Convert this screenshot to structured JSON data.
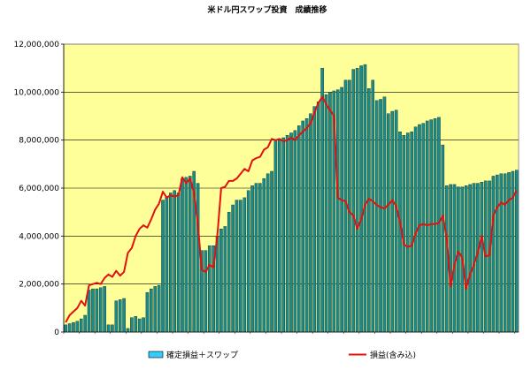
{
  "chart_data": {
    "type": "bar",
    "title": "米ドル円スワップ投資　成績推移",
    "xlabel": "",
    "ylabel": "",
    "ylim": [
      0,
      12000000
    ],
    "y_ticks": [
      "0",
      "2,000,000",
      "4,000,000",
      "6,000,000",
      "8,000,000",
      "10,000,000",
      "12,000,000"
    ],
    "grid": true,
    "legend_position": "bottom",
    "colors": {
      "plot_bg": "#ffff99",
      "bar_fill": "#1a8a8a",
      "bar_stroke": "#0a3030",
      "line": "#e41010",
      "grid": "#000000",
      "legend_bar": "#33ccff"
    },
    "series": [
      {
        "name": "確定損益＋スワップ",
        "type": "bar",
        "values": [
          300000,
          350000,
          400000,
          450000,
          550000,
          700000,
          1750000,
          1800000,
          1800000,
          1850000,
          1900000,
          300000,
          300000,
          1300000,
          1350000,
          1400000,
          150000,
          600000,
          650000,
          550000,
          600000,
          1650000,
          1800000,
          1900000,
          1950000,
          5500000,
          5650000,
          5800000,
          5900000,
          5800000,
          6400000,
          6450000,
          6500000,
          6700000,
          6200000,
          3400000,
          3400000,
          3600000,
          3600000,
          4000000,
          4300000,
          4400000,
          5000000,
          5300000,
          5500000,
          5500000,
          5600000,
          5900000,
          6100000,
          6200000,
          6200000,
          6400000,
          6600000,
          6700000,
          8000000,
          8000000,
          8100000,
          8200000,
          8300000,
          8400000,
          8600000,
          8800000,
          8900000,
          9100000,
          9400000,
          9600000,
          11000000,
          9900000,
          10000000,
          10050000,
          10100000,
          10200000,
          10500000,
          10500000,
          10950000,
          11000000,
          11100000,
          11150000,
          10150000,
          10500000,
          9650000,
          9700000,
          9800000,
          9100000,
          9200000,
          9250000,
          8350000,
          8200000,
          8300000,
          8350000,
          8550000,
          8650000,
          8700000,
          8800000,
          8850000,
          8900000,
          8950000,
          7800000,
          6100000,
          6150000,
          6150000,
          6050000,
          6050000,
          6100000,
          6150000,
          6200000,
          6200000,
          6250000,
          6300000,
          6300000,
          6500000,
          6550000,
          6600000,
          6600000,
          6650000,
          6700000,
          6750000
        ]
      },
      {
        "name": "損益(含み込)",
        "type": "line",
        "values": [
          400000,
          700000,
          850000,
          1000000,
          1300000,
          1100000,
          1950000,
          2000000,
          2050000,
          2000000,
          2250000,
          2400000,
          2300000,
          2550000,
          2350000,
          2500000,
          3300000,
          3500000,
          4000000,
          4300000,
          4450000,
          4350000,
          4700000,
          5100000,
          5350000,
          5850000,
          5600000,
          5700000,
          5650000,
          5700000,
          6450000,
          6200000,
          6400000,
          5800000,
          4500000,
          2600000,
          2500000,
          2800000,
          2700000,
          4000000,
          6000000,
          6050000,
          6300000,
          6300000,
          6400000,
          6600000,
          6800000,
          6700000,
          7150000,
          7250000,
          7300000,
          7600000,
          7700000,
          8050000,
          8000000,
          8050000,
          7950000,
          8000000,
          8100000,
          8000000,
          8200000,
          8350000,
          8500000,
          8700000,
          9150000,
          9550000,
          9800000,
          9500000,
          9250000,
          9000000,
          5600000,
          5500000,
          5450000,
          5000000,
          4850000,
          4300000,
          4700000,
          5300000,
          5550000,
          5450000,
          5300000,
          5200000,
          5150000,
          5300000,
          5500000,
          5250000,
          4600000,
          3650000,
          3550000,
          3600000,
          4100000,
          4450000,
          4500000,
          4450000,
          4500000,
          4500000,
          4550000,
          4850000,
          3950000,
          1900000,
          2800000,
          3350000,
          3100000,
          1800000,
          2400000,
          2800000,
          3300000,
          4000000,
          3150000,
          3200000,
          4850000,
          5200000,
          5400000,
          5300000,
          5500000,
          5600000,
          5900000
        ]
      }
    ]
  }
}
